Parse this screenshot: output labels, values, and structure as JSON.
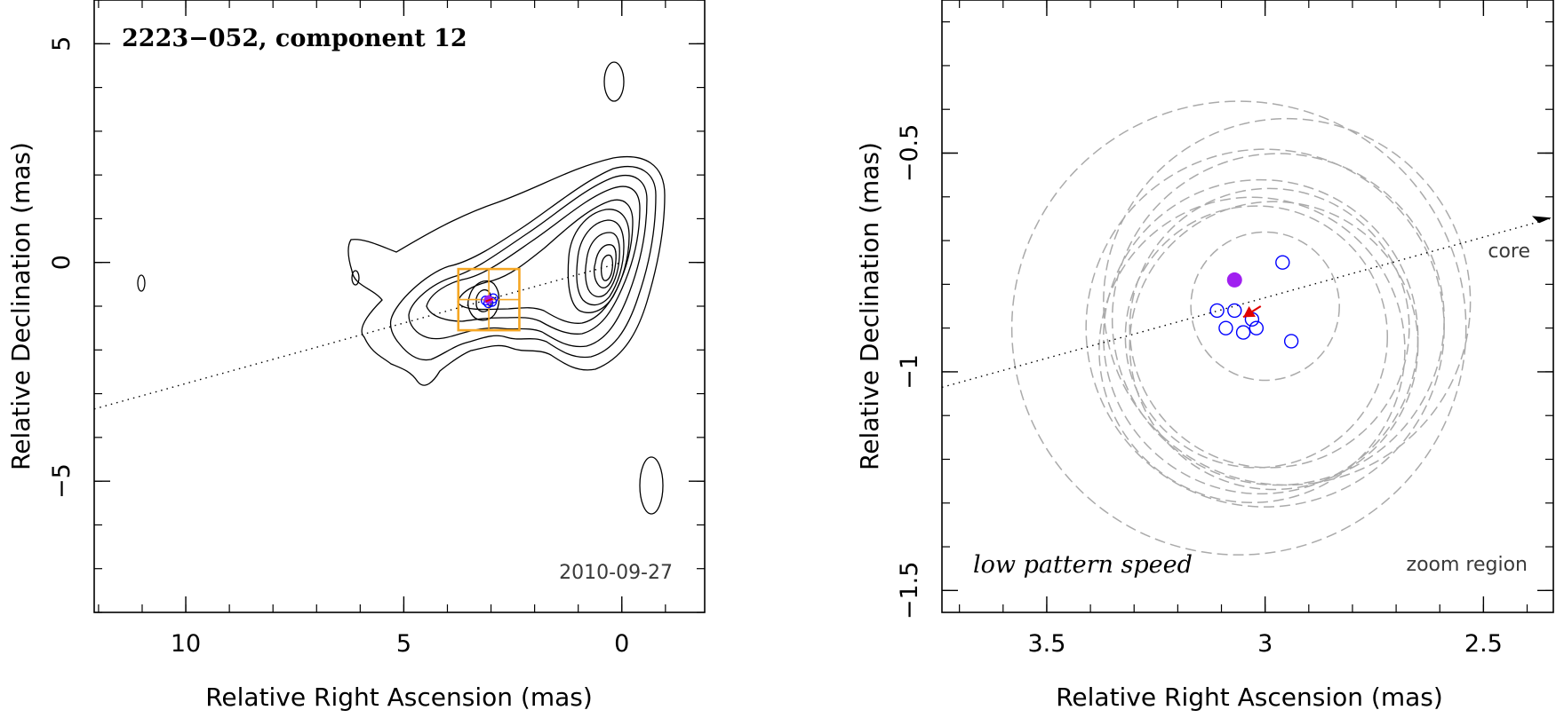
{
  "chart_data": [
    {
      "type": "scatter",
      "panel": "left",
      "title": "2223−052, component 12",
      "epoch": "2010-09-27",
      "xlabel": "Relative Right Ascension (mas)",
      "ylabel": "Relative Declination (mas)",
      "xlim": [
        12.1,
        -1.9
      ],
      "ylim": [
        -8.0,
        6.0
      ],
      "xticks": [
        {
          "value": 10,
          "label": "10"
        },
        {
          "value": 5,
          "label": "5"
        },
        {
          "value": 0,
          "label": "0"
        }
      ],
      "yticks": [
        {
          "value": 5,
          "label": "5"
        },
        {
          "value": 0,
          "label": "0"
        },
        {
          "value": -5,
          "label": "−5"
        }
      ],
      "contour_levels": 10,
      "jet_axis": {
        "x1": 12.1,
        "y1": -3.35,
        "x2": 0.0,
        "y2": 0.0
      },
      "component": {
        "x": 3.06,
        "y": -0.85
      },
      "component_fits": [
        {
          "x": 3.12,
          "y": -0.87
        },
        {
          "x": 2.98,
          "y": -0.9
        },
        {
          "x": 3.06,
          "y": -0.93
        },
        {
          "x": 2.95,
          "y": -0.82
        }
      ],
      "zoom_box": {
        "x_min": 2.35,
        "x_max": 3.75,
        "y_min": -1.55,
        "y_max": -0.15,
        "color": "#f5a623"
      }
    },
    {
      "type": "scatter",
      "panel": "right",
      "xlabel": "Relative Right Ascension (mas)",
      "ylabel": "Relative Declination (mas)",
      "xlim": [
        3.74,
        2.34
      ],
      "ylim": [
        -1.55,
        -0.15
      ],
      "xticks": [
        {
          "value": 3.5,
          "label": "3.5"
        },
        {
          "value": 3.0,
          "label": "3"
        },
        {
          "value": 2.5,
          "label": "2.5"
        }
      ],
      "yticks": [
        {
          "value": -0.5,
          "label": "−0.5"
        },
        {
          "value": -1.0,
          "label": "−1"
        },
        {
          "value": -1.5,
          "label": "−1.5"
        }
      ],
      "annotations": {
        "core": "core",
        "pattern": "low pattern speed",
        "zoom": "zoom region"
      },
      "mean_position": {
        "x": 3.07,
        "y": -0.79,
        "color": "#a020f0"
      },
      "measured_positions": [
        {
          "x": 2.96,
          "y": -0.75
        },
        {
          "x": 3.11,
          "y": -0.86
        },
        {
          "x": 3.07,
          "y": -0.86
        },
        {
          "x": 3.03,
          "y": -0.88
        },
        {
          "x": 3.09,
          "y": -0.9
        },
        {
          "x": 3.02,
          "y": -0.9
        },
        {
          "x": 3.05,
          "y": -0.91
        },
        {
          "x": 2.94,
          "y": -0.93
        }
      ],
      "marker_color": "#0000ff",
      "motion_arrow": {
        "from_x": 3.01,
        "from_y": -0.85,
        "to_x": 3.05,
        "to_y": -0.875,
        "color": "#e00000"
      },
      "uncertainty_circles": [
        {
          "x": 3.0,
          "y": -0.85,
          "r": 0.17
        },
        {
          "x": 2.99,
          "y": -0.9,
          "r": 0.32
        },
        {
          "x": 3.02,
          "y": -0.92,
          "r": 0.3
        },
        {
          "x": 2.98,
          "y": -0.94,
          "r": 0.33
        },
        {
          "x": 3.0,
          "y": -0.9,
          "r": 0.41
        },
        {
          "x": 3.01,
          "y": -0.92,
          "r": 0.36
        },
        {
          "x": 2.97,
          "y": -0.88,
          "r": 0.38
        },
        {
          "x": 3.03,
          "y": -0.95,
          "r": 0.35
        },
        {
          "x": 2.95,
          "y": -0.84,
          "r": 0.42
        },
        {
          "x": 3.06,
          "y": -0.9,
          "r": 0.52
        }
      ],
      "circle_color": "#aaaaaa"
    }
  ]
}
